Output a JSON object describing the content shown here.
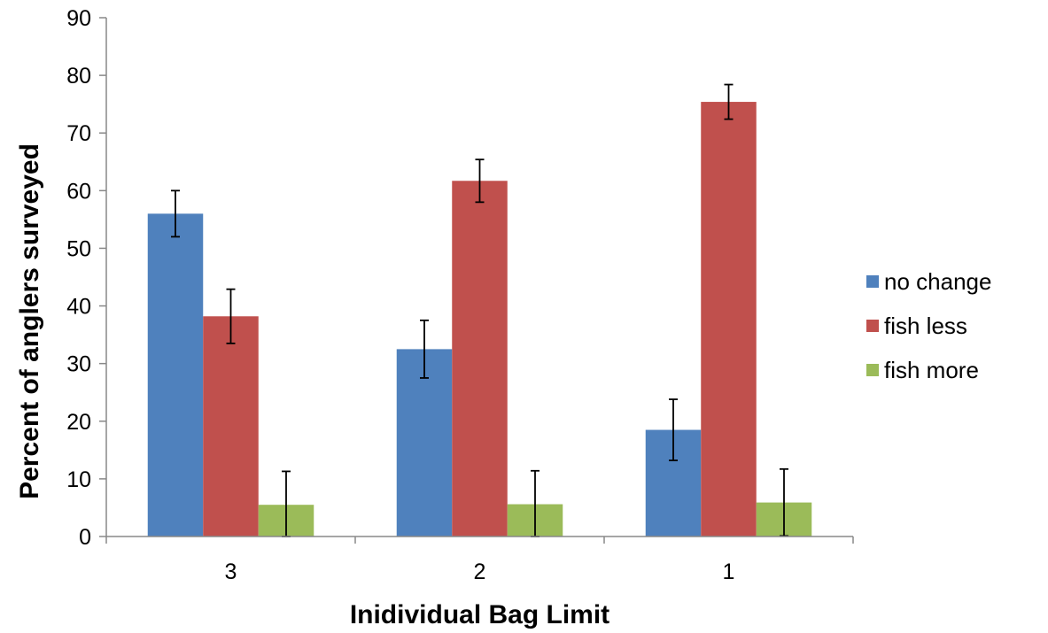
{
  "chart_data": {
    "type": "bar",
    "title": "",
    "xlabel": "Inidividual Bag Limit",
    "ylabel": "Percent of anglers surveyed",
    "categories": [
      "3",
      "2",
      "1"
    ],
    "ylim": [
      0,
      90
    ],
    "yticks": [
      0,
      10,
      20,
      30,
      40,
      50,
      60,
      70,
      80,
      90
    ],
    "grid": false,
    "legend_position": "right",
    "series": [
      {
        "name": "no change",
        "color": "#4F81BD",
        "values": [
          56,
          32.5,
          18.5
        ],
        "errors": [
          4,
          5,
          5.3
        ]
      },
      {
        "name": "fish less",
        "color": "#C0504D",
        "values": [
          38.2,
          61.7,
          75.4
        ],
        "errors": [
          4.7,
          3.7,
          3
        ]
      },
      {
        "name": "fish more",
        "color": "#9BBB59",
        "values": [
          5.5,
          5.6,
          5.9
        ],
        "errors": [
          5.8,
          5.8,
          5.8
        ]
      }
    ]
  }
}
